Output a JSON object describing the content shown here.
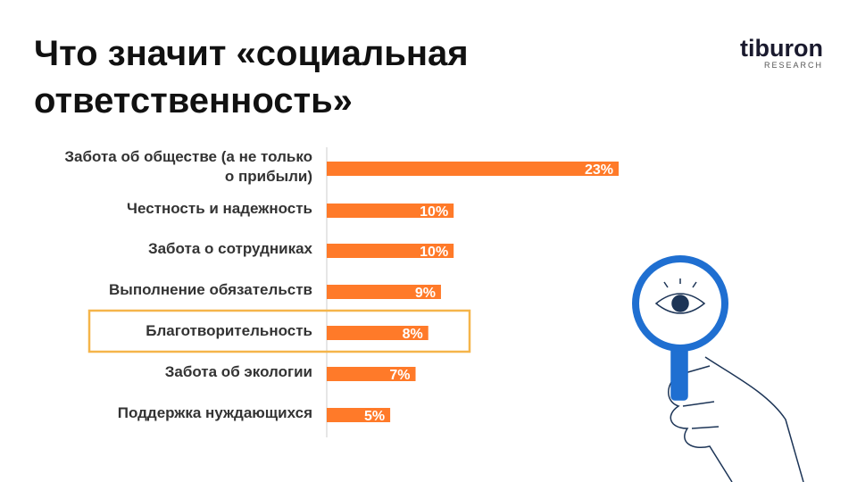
{
  "title": "Что значит «социальная ответственность»",
  "logo": {
    "name": "tiburon",
    "subtitle": "RESEARCH"
  },
  "chart_data": {
    "type": "bar",
    "orientation": "horizontal",
    "color": "#ff7a29",
    "categories": [
      "Забота об обществе (а не только о прибыли)",
      "Честность и надежность",
      "Забота о сотрудниках",
      "Выполнение обязательств",
      "Благотворительность",
      "Забота об экологии",
      "Поддержка нуждающихся"
    ],
    "values": [
      23,
      10,
      10,
      9,
      8,
      7,
      5
    ],
    "value_labels": [
      "23%",
      "10%",
      "10%",
      "9%",
      "8%",
      "7%",
      "5%"
    ]
  }
}
